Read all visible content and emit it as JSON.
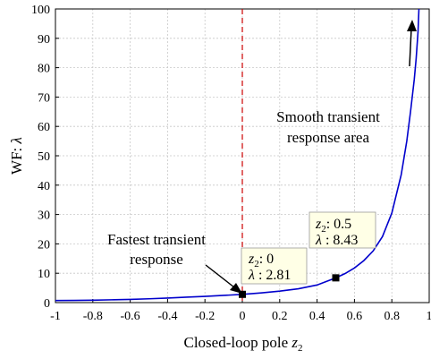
{
  "chart_data": {
    "type": "line",
    "xlabel_prefix": "Closed-loop pole ",
    "xlabel_var": "z",
    "xlabel_sub": "2",
    "ylabel_prefix": "WF: ",
    "ylabel_var": "λ",
    "xlim": [
      -1,
      1
    ],
    "ylim": [
      0,
      100
    ],
    "xticks": [
      -1,
      -0.8,
      -0.6,
      -0.4,
      -0.2,
      0,
      0.2,
      0.4,
      0.6,
      0.8,
      1
    ],
    "xtick_labels": [
      "-1",
      "-0.8",
      "-0.6",
      "-0.4",
      "-0.2",
      "0",
      "0.2",
      "0.4",
      "0.6",
      "0.8",
      "1"
    ],
    "yticks": [
      0,
      10,
      20,
      30,
      40,
      50,
      60,
      70,
      80,
      90,
      100
    ],
    "ytick_labels": [
      "0",
      "10",
      "20",
      "30",
      "40",
      "50",
      "60",
      "70",
      "80",
      "90",
      "100"
    ],
    "grid": true,
    "series": [
      {
        "color": "#0000cc",
        "x": [
          -1,
          -0.9,
          -0.8,
          -0.7,
          -0.6,
          -0.5,
          -0.4,
          -0.3,
          -0.2,
          -0.1,
          0,
          0.1,
          0.2,
          0.3,
          0.4,
          0.5,
          0.55,
          0.6,
          0.65,
          0.7,
          0.75,
          0.8,
          0.85,
          0.88,
          0.9,
          0.92,
          0.93,
          0.94,
          0.945
        ],
        "y": [
          0.7,
          0.75,
          0.82,
          0.95,
          1.1,
          1.3,
          1.55,
          1.85,
          2.1,
          2.45,
          2.81,
          3.3,
          3.9,
          4.7,
          6.0,
          8.43,
          9.9,
          11.8,
          14.3,
          17.6,
          22.5,
          30.5,
          43.5,
          55.0,
          65.0,
          76.0,
          83.0,
          92.0,
          100.0
        ]
      }
    ],
    "vline": {
      "x": 0,
      "color": "#cc0000",
      "style": "dashed"
    },
    "markers": [
      {
        "x": 0,
        "y": 2.81
      },
      {
        "x": 0.5,
        "y": 8.43
      }
    ],
    "datatips": [
      {
        "z_label": "z",
        "z_sub": "2",
        "z_value": ": 0",
        "lambda_label": "λ",
        "lambda_value": " : 2.81"
      },
      {
        "z_label": "z",
        "z_sub": "2",
        "z_value": ": 0.5",
        "lambda_label": "λ",
        "lambda_value": " : 8.43"
      }
    ],
    "annotations": {
      "fastest_line1": "Fastest transient",
      "fastest_line2": "response",
      "smooth_line1": "Smooth transient",
      "smooth_line2": "response area"
    }
  }
}
